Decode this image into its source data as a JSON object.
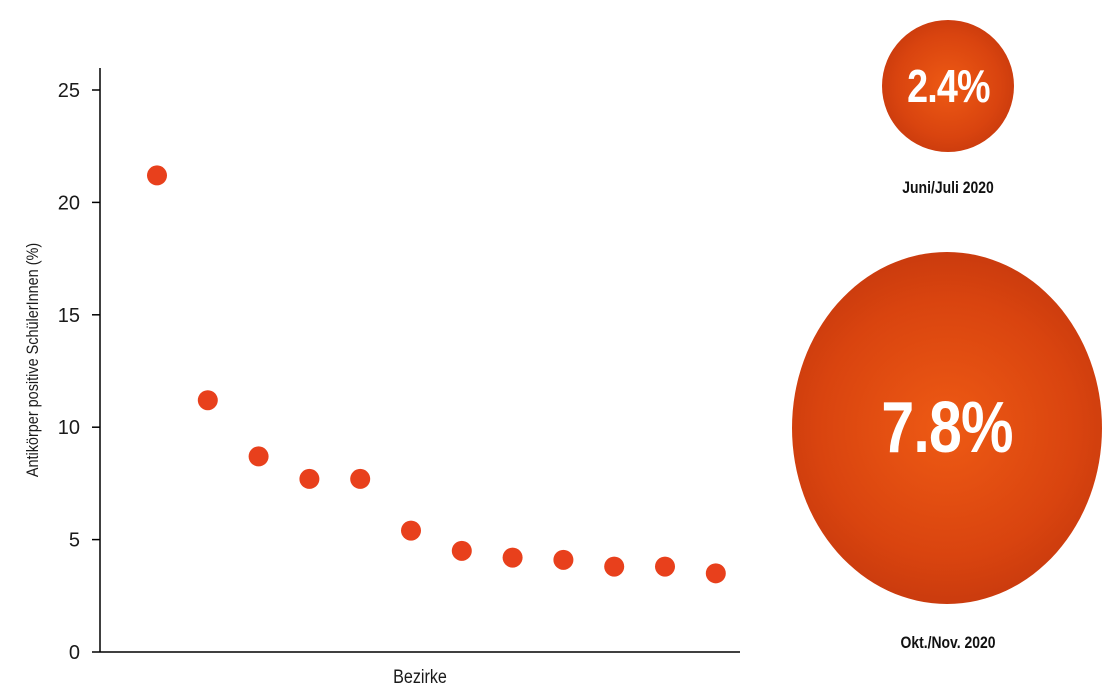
{
  "chart_data": {
    "type": "scatter",
    "xlabel": "Bezirke",
    "ylabel": "Antikörper positive SchülerInnen (%)",
    "ylim": [
      0,
      25
    ],
    "yticks": [
      0,
      5,
      10,
      15,
      20,
      25
    ],
    "grid": false,
    "point_color": "#e8401c",
    "values": [
      21.2,
      11.2,
      8.7,
      7.7,
      7.7,
      5.4,
      4.5,
      4.2,
      4.1,
      3.8,
      3.8,
      3.5
    ]
  },
  "bubbles": [
    {
      "value": "2.4%",
      "label": "Juni/Juli 2020"
    },
    {
      "value": "7.8%",
      "label": "Okt./Nov. 2020"
    }
  ],
  "colors": {
    "bubble": "#d9440f",
    "points": "#e8401c"
  }
}
